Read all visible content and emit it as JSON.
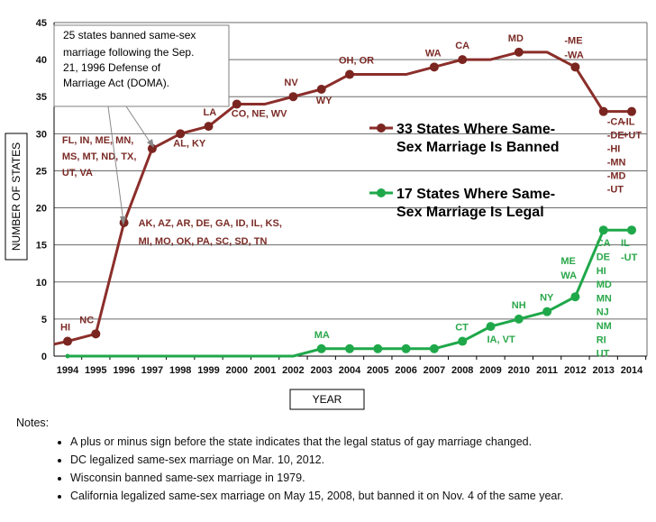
{
  "chart_data": {
    "type": "line",
    "xlabel": "YEAR",
    "ylabel": "NUMBER OF STATES",
    "ylim": [
      0,
      45
    ],
    "yticks": [
      0,
      5,
      10,
      15,
      20,
      25,
      30,
      35,
      40,
      45
    ],
    "x": [
      "1994",
      "1995",
      "1996",
      "1997",
      "1998",
      "1999",
      "2000",
      "2001",
      "2002",
      "2003",
      "2004",
      "2005",
      "2006",
      "2007",
      "2008",
      "2009",
      "2010",
      "2011",
      "2012",
      "2013",
      "2014"
    ],
    "grid": "horizontal",
    "series": [
      {
        "name": "33 States Where Same-Sex Marriage Is Banned",
        "color": "#8b2e2a",
        "values": [
          2,
          3,
          18,
          28,
          30,
          31,
          34,
          34,
          35,
          36,
          38,
          38,
          38,
          39,
          40,
          40,
          41,
          41,
          39,
          33,
          33
        ],
        "markers": [
          true,
          true,
          true,
          true,
          true,
          true,
          true,
          false,
          true,
          true,
          true,
          false,
          false,
          true,
          true,
          false,
          true,
          false,
          true,
          true,
          true
        ],
        "annotations": [
          {
            "year": "1994",
            "lines": [
              "HI"
            ]
          },
          {
            "year": "1995",
            "lines": [
              "NC"
            ]
          },
          {
            "year": "1996",
            "lines": [
              "AK, AZ, AR, DE, GA, ID, IL, KS,",
              "MI, MO, OK, PA, SC, SD, TN"
            ]
          },
          {
            "year": "1997",
            "lines": [
              "FL, IN, ME, MN,",
              "MS, MT, ND, TX,",
              "UT, VA"
            ]
          },
          {
            "year": "1998",
            "lines": [
              "AL, KY"
            ]
          },
          {
            "year": "1999",
            "lines": [
              "LA"
            ]
          },
          {
            "year": "2000",
            "lines": [
              "CO, NE, WV"
            ]
          },
          {
            "year": "2002",
            "lines": [
              "NV"
            ]
          },
          {
            "year": "2003",
            "lines": [
              "WY"
            ]
          },
          {
            "year": "2004",
            "lines": [
              "OH, OR"
            ]
          },
          {
            "year": "2007",
            "lines": [
              "WA"
            ]
          },
          {
            "year": "2008",
            "lines": [
              "CA"
            ]
          },
          {
            "year": "2010",
            "lines": [
              "MD"
            ]
          },
          {
            "year": "2012",
            "lines": [
              "-ME",
              "-WA"
            ]
          },
          {
            "year": "2013",
            "lines": [
              "-CA",
              "-DE",
              "-HI",
              "-MN",
              "-MD",
              "-UT"
            ]
          },
          {
            "year": "2014",
            "lines": [
              "-IL",
              "+UT"
            ]
          }
        ]
      },
      {
        "name": "17 States Where Same-Sex Marriage Is Legal",
        "color": "#1fa84a",
        "values": [
          0,
          0,
          0,
          0,
          0,
          0,
          0,
          0,
          0,
          1,
          1,
          1,
          1,
          1,
          2,
          4,
          5,
          6,
          8,
          17,
          17
        ],
        "markers": [
          true,
          false,
          false,
          false,
          false,
          false,
          false,
          false,
          false,
          true,
          true,
          true,
          true,
          true,
          true,
          true,
          true,
          true,
          true,
          true,
          true
        ],
        "annotations": [
          {
            "year": "2003",
            "lines": [
              "MA"
            ]
          },
          {
            "year": "2008",
            "lines": [
              "CT"
            ]
          },
          {
            "year": "2009",
            "lines": [
              "IA, VT"
            ]
          },
          {
            "year": "2010",
            "lines": [
              "NH"
            ]
          },
          {
            "year": "2011",
            "lines": [
              "NY"
            ]
          },
          {
            "year": "2012",
            "lines": [
              "ME",
              "WA"
            ]
          },
          {
            "year": "2013",
            "lines": [
              "CA",
              "DE",
              "HI",
              "MD",
              "MN",
              "NJ",
              "NM",
              "RI",
              "UT"
            ]
          },
          {
            "year": "2014",
            "lines": [
              "IL",
              "-UT"
            ]
          }
        ]
      }
    ],
    "callout": {
      "lines": [
        "25 states banned same-sex",
        "marriage following the Sep.",
        "21, 1996 Defense of",
        "Marriage Act (DOMA)."
      ]
    }
  },
  "notes": {
    "title": "Notes:",
    "items": [
      "A plus or minus sign before the state indicates that the legal status of gay marriage changed.",
      "DC legalized same-sex marriage on Mar. 10, 2012.",
      "Wisconsin banned same-sex marriage in 1979.",
      "California legalized same-sex marriage on May 15, 2008,  but banned it on Nov. 4 of the same year."
    ]
  }
}
